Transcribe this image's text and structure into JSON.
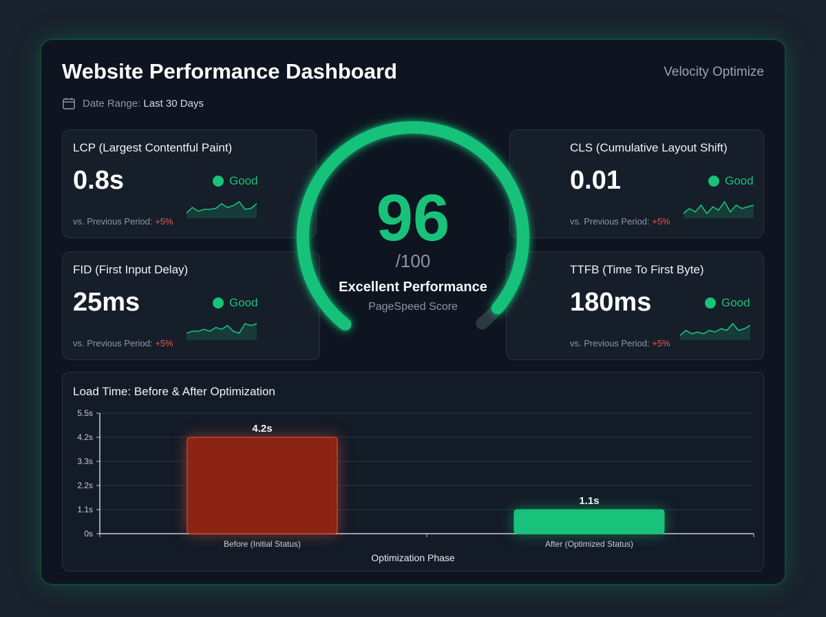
{
  "header": {
    "title": "Website Performance Dashboard",
    "brand": "Velocity Optimize",
    "date_label": "Date Range:",
    "date_value": "Last 30 Days"
  },
  "metrics": [
    {
      "label": "LCP (Largest Contentful Paint)",
      "value": "0.8s",
      "status": "Good",
      "compare_label": "vs. Previous Period:",
      "compare_value": "+5%",
      "spark": [
        2,
        5,
        3,
        4,
        4,
        4.5,
        7,
        5,
        6,
        8,
        4,
        4.5,
        7
      ]
    },
    {
      "label": "FID (First Input Delay)",
      "value": "25ms",
      "status": "Good",
      "compare_label": "vs. Previous Period:",
      "compare_value": "+5%",
      "spark": [
        3,
        4,
        4,
        5,
        4,
        6,
        5,
        7,
        4,
        3,
        8,
        7,
        8
      ]
    },
    {
      "label": "CLS (Cumulative Layout Shift)",
      "value": "0.01",
      "status": "Good",
      "compare_label": "vs. Previous Period:",
      "compare_value": "+5%",
      "spark": [
        2,
        5,
        3,
        7,
        2,
        6,
        4,
        9,
        3,
        7,
        5,
        6,
        7
      ]
    },
    {
      "label": "TTFB (Time To First Byte)",
      "value": "180ms",
      "status": "Good",
      "compare_label": "vs. Previous Period:",
      "compare_value": "+5%",
      "spark": [
        2,
        5,
        3,
        4,
        3,
        5,
        4,
        6,
        5,
        9,
        5,
        6,
        8
      ]
    }
  ],
  "score": {
    "value": "96",
    "max": "/100",
    "rating": "Excellent Performance",
    "caption": "PageSpeed Score",
    "percent": 96
  },
  "colors": {
    "accent": "#19c27a",
    "bad": "#8b2412",
    "delta": "#f05a4a"
  },
  "chart_data": {
    "type": "bar",
    "title": "Load Time: Before & After Optimization",
    "xlabel": "Optimization Phase",
    "ylabel": "",
    "categories": [
      "Before (Initial Status)",
      "After (Optimized Status)"
    ],
    "values": [
      4.2,
      1.1
    ],
    "value_labels": [
      "4.2s",
      "1.1s"
    ],
    "yticks": [
      "0s",
      "1.1s",
      "2.2s",
      "3.3s",
      "4.2s",
      "5.5s"
    ],
    "ylim": [
      0,
      5.5
    ],
    "grid": true
  }
}
